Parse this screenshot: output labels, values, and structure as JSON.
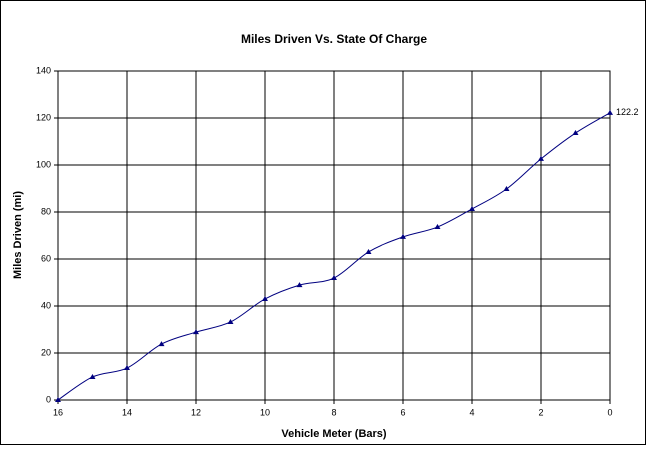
{
  "chart_data": {
    "type": "line",
    "title": "Miles Driven Vs. State Of Charge",
    "x_label": "Vehicle Meter (Bars)",
    "y_label": "Miles Driven (mi)",
    "x": [
      16,
      15,
      14,
      13,
      12,
      11,
      10,
      9,
      8,
      7,
      6,
      5,
      4,
      3,
      2,
      1,
      0
    ],
    "series": [
      {
        "name": "Miles Driven",
        "color": "#000080",
        "values": [
          0,
          9.8,
          13.6,
          23.8,
          28.9,
          33.2,
          43,
          48.9,
          51.9,
          63,
          69.4,
          73.6,
          81.3,
          89.8,
          102.6,
          113.6,
          122.2
        ]
      }
    ],
    "xlim": [
      16,
      0
    ],
    "xticks": [
      16,
      14,
      12,
      10,
      8,
      6,
      4,
      2,
      0
    ],
    "ylim": [
      0,
      140
    ],
    "yticks": [
      0,
      20,
      40,
      60,
      80,
      100,
      120,
      140
    ],
    "grid": true
  }
}
